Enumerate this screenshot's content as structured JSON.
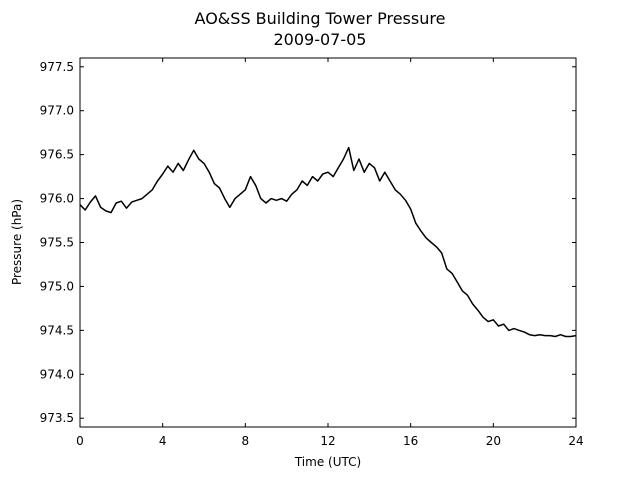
{
  "chart_data": {
    "type": "line",
    "title": "AO&SS Building Tower Pressure",
    "subtitle": "2009-07-05",
    "xlabel": "Time (UTC)",
    "ylabel": "Pressure (hPa)",
    "xlim": [
      0,
      24
    ],
    "ylim": [
      973.4,
      977.6
    ],
    "xticks": [
      0,
      4,
      8,
      12,
      16,
      20,
      24
    ],
    "yticks": [
      973.5,
      974.0,
      974.5,
      975.0,
      975.5,
      976.0,
      976.5,
      977.0,
      977.5
    ],
    "grid": false,
    "line_color": "#000000",
    "series": [
      {
        "x": [
          0,
          0.25,
          0.5,
          0.75,
          1.0,
          1.25,
          1.5,
          1.75,
          2.0,
          2.25,
          2.5,
          2.75,
          3.0,
          3.25,
          3.5,
          3.75,
          4.0,
          4.25,
          4.5,
          4.75,
          5.0,
          5.25,
          5.5,
          5.75,
          6.0,
          6.25,
          6.5,
          6.75,
          7.0,
          7.25,
          7.5,
          7.75,
          8.0,
          8.25,
          8.5,
          8.75,
          9.0,
          9.25,
          9.5,
          9.75,
          10.0,
          10.25,
          10.5,
          10.75,
          11.0,
          11.25,
          11.5,
          11.75,
          12.0,
          12.25,
          12.5,
          12.75,
          13.0,
          13.25,
          13.5,
          13.75,
          14.0,
          14.25,
          14.5,
          14.75,
          15.0,
          15.25,
          15.5,
          15.75,
          16.0,
          16.25,
          16.5,
          16.75,
          17.0,
          17.25,
          17.5,
          17.75,
          18.0,
          18.25,
          18.5,
          18.75,
          19.0,
          19.25,
          19.5,
          19.75,
          20.0,
          20.25,
          20.5,
          20.75,
          21.0,
          21.25,
          21.5,
          21.75,
          22.0,
          22.25,
          22.5,
          22.75,
          23.0,
          23.25,
          23.5,
          23.75,
          24.0
        ],
        "y": [
          975.93,
          975.87,
          975.96,
          976.03,
          975.9,
          975.86,
          975.84,
          975.95,
          975.97,
          975.89,
          975.96,
          975.98,
          976.0,
          976.05,
          976.1,
          976.2,
          976.28,
          976.37,
          976.3,
          976.4,
          976.32,
          976.44,
          976.55,
          976.45,
          976.4,
          976.3,
          976.17,
          976.12,
          976.0,
          975.9,
          976.0,
          976.05,
          976.1,
          976.25,
          976.15,
          976.0,
          975.95,
          976.0,
          975.98,
          976.0,
          975.97,
          976.05,
          976.1,
          976.2,
          976.15,
          976.25,
          976.2,
          976.28,
          976.3,
          976.25,
          976.35,
          976.45,
          976.58,
          976.32,
          976.45,
          976.3,
          976.4,
          976.35,
          976.2,
          976.3,
          976.2,
          976.1,
          976.05,
          975.98,
          975.88,
          975.72,
          975.63,
          975.55,
          975.5,
          975.45,
          975.38,
          975.2,
          975.15,
          975.05,
          974.95,
          974.9,
          974.8,
          974.73,
          974.65,
          974.6,
          974.62,
          974.55,
          974.57,
          974.5,
          974.52,
          974.5,
          974.48,
          974.45,
          974.44,
          974.45,
          974.44,
          974.44,
          974.43,
          974.45,
          974.43,
          974.43,
          974.44
        ]
      }
    ]
  }
}
